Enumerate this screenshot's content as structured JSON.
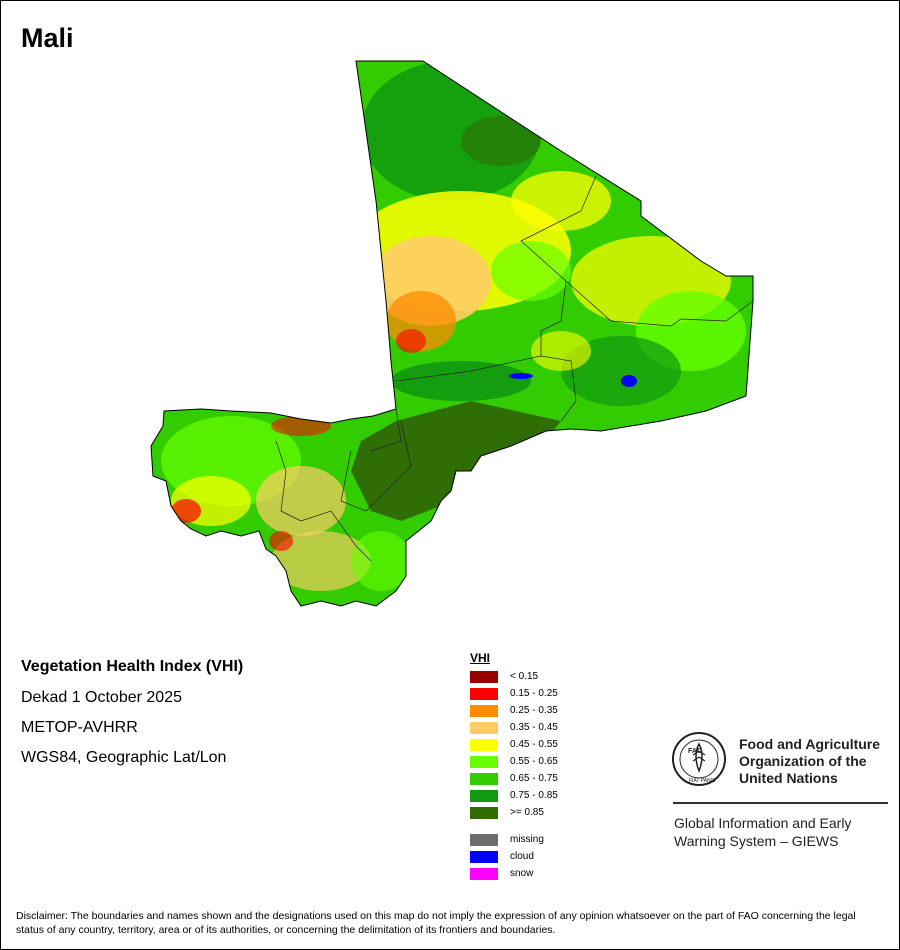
{
  "map": {
    "title": "Mali",
    "product": "Vegetation Health Index (VHI)",
    "period": "Dekad 1 October 2025",
    "sensor": "METOP-AVHRR",
    "projection": "WGS84, Geographic Lat/Lon"
  },
  "legend": {
    "title": "VHI",
    "classes": [
      {
        "label": "< 0.15",
        "color": "#990000"
      },
      {
        "label": "0.15 - 0.25",
        "color": "#ff0000"
      },
      {
        "label": "0.25 - 0.35",
        "color": "#ff8c00"
      },
      {
        "label": "0.35 - 0.45",
        "color": "#ffcc66"
      },
      {
        "label": "0.45 - 0.55",
        "color": "#ffff00"
      },
      {
        "label": "0.55 - 0.65",
        "color": "#66ff00"
      },
      {
        "label": "0.65 - 0.75",
        "color": "#33cc00"
      },
      {
        "label": "0.75 - 0.85",
        "color": "#119911"
      },
      {
        "label": ">= 0.85",
        "color": "#2e6e05"
      }
    ],
    "special": [
      {
        "label": "missing",
        "color": "#6e6e6e"
      },
      {
        "label": "cloud",
        "color": "#0000ff"
      },
      {
        "label": "snow",
        "color": "#ff00ff"
      }
    ]
  },
  "organization": {
    "logo_text": "FAO",
    "logo_motto": "FIAT PANIS",
    "name_line1": "Food and Agriculture",
    "name_line2": "Organization of the",
    "name_line3": "United Nations",
    "system_line1": "Global Information and Early",
    "system_line2": "Warning System – GIEWS"
  },
  "disclaimer": "Disclaimer: The boundaries and names shown and the designations used on this map do not imply the expression of any opinion whatsoever on the part of FAO concerning the legal status of any country, territory, area or of its authorities, or concerning the delimitation of its frontiers and boundaries."
}
